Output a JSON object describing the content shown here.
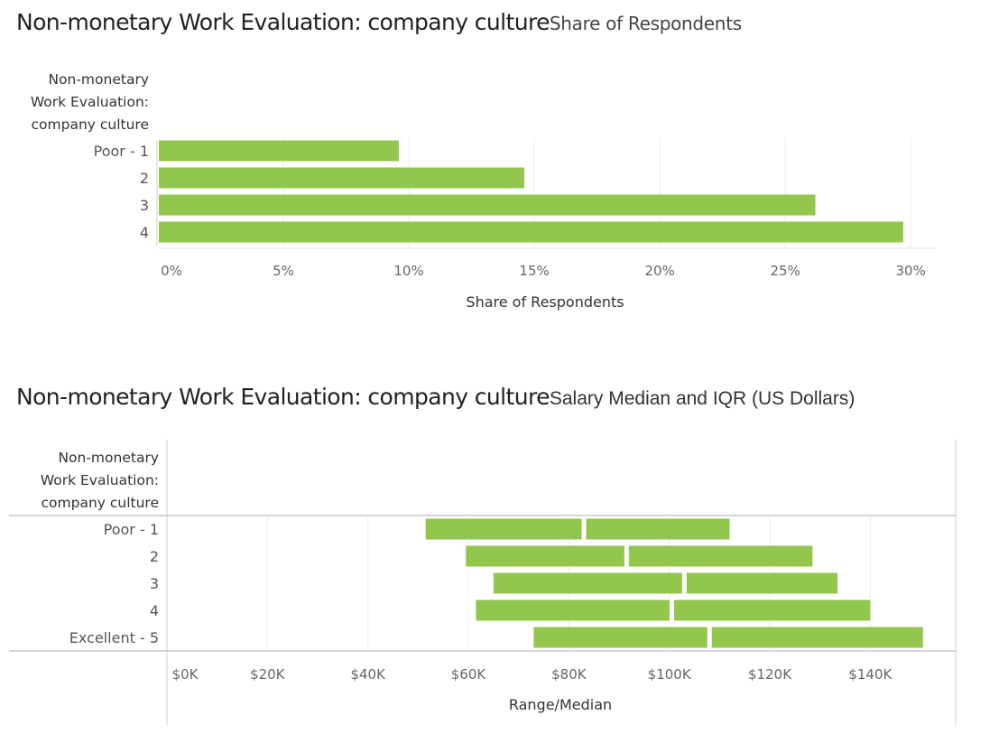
{
  "chart_data": [
    {
      "type": "bar",
      "title": "Non-monetary Work Evaluation: company culture",
      "subtitle": "Share of Respondents",
      "row_header_lines": [
        "Non-monetary",
        "Work Evaluation:",
        "company culture"
      ],
      "categories": [
        "Poor - 1",
        "2",
        "3",
        "4"
      ],
      "values": [
        0.096,
        0.146,
        0.262,
        0.297
      ],
      "xlabel": "Share of Respondents",
      "xlim": [
        0,
        0.31
      ],
      "xticks": [
        0,
        0.05,
        0.1,
        0.15,
        0.2,
        0.25,
        0.3
      ],
      "xtick_labels": [
        "0%",
        "5%",
        "10%",
        "15%",
        "20%",
        "25%",
        "30%"
      ],
      "grid": true,
      "bar_color": "#93C64D"
    },
    {
      "type": "bar",
      "title": "Non-monetary Work Evaluation: company culture",
      "subtitle": "Salary Median and IQR (US Dollars)",
      "row_header_lines": [
        "Non-monetary",
        "Work Evaluation:",
        "company culture"
      ],
      "categories": [
        "Poor - 1",
        "2",
        "3",
        "4",
        "Excellent - 5"
      ],
      "q1": [
        51500,
        59500,
        65000,
        61500,
        73000
      ],
      "median": [
        83000,
        91500,
        103000,
        100500,
        108000
      ],
      "q3": [
        112000,
        128500,
        133500,
        140000,
        150500
      ],
      "xlabel": "Range/Median",
      "xlim": [
        0,
        157000
      ],
      "xticks": [
        0,
        20000,
        40000,
        60000,
        80000,
        100000,
        120000,
        140000
      ],
      "xtick_labels": [
        "$0K",
        "$20K",
        "$40K",
        "$60K",
        "$80K",
        "$100K",
        "$120K",
        "$140K"
      ],
      "grid": true,
      "bar_color": "#93C64D"
    }
  ]
}
